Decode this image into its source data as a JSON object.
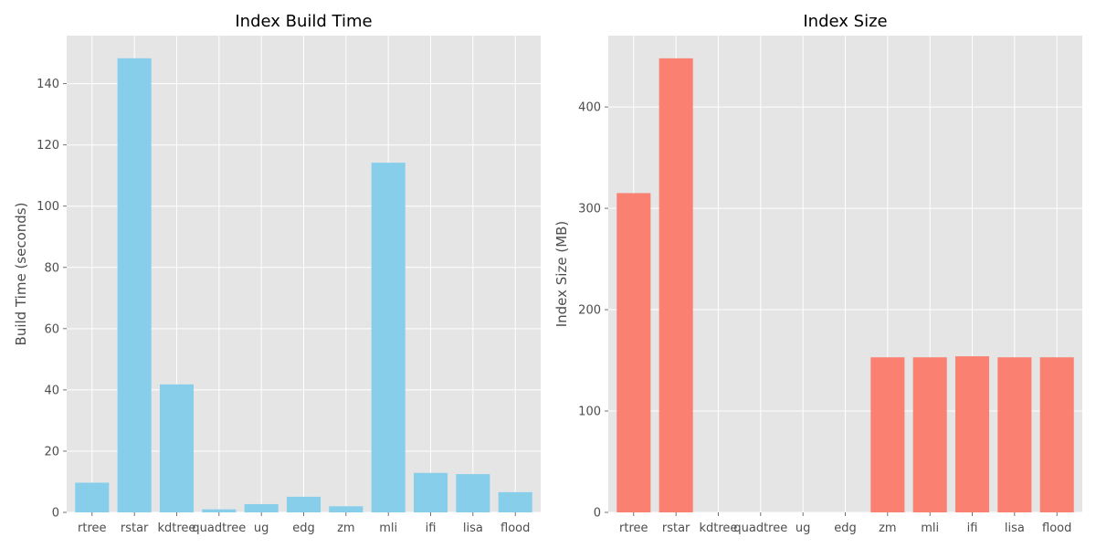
{
  "chart_data": [
    {
      "type": "bar",
      "title": "Index Build Time",
      "xlabel": "",
      "ylabel": "Build Time (seconds)",
      "categories": [
        "rtree",
        "rstar",
        "kdtree",
        "quadtree",
        "ug",
        "edg",
        "zm",
        "mli",
        "ifi",
        "lisa",
        "flood"
      ],
      "values": [
        9.7,
        148.3,
        41.8,
        1.0,
        2.7,
        5.1,
        2.0,
        114.2,
        12.9,
        12.5,
        6.6
      ],
      "ylim": [
        0,
        155.7
      ],
      "yticks": [
        0,
        20,
        40,
        60,
        80,
        100,
        120,
        140
      ],
      "color": "#87ceeb",
      "grid": true,
      "legend": "none"
    },
    {
      "type": "bar",
      "title": "Index Size",
      "xlabel": "",
      "ylabel": "Index Size (MB)",
      "categories": [
        "rtree",
        "rstar",
        "kdtree",
        "quadtree",
        "ug",
        "edg",
        "zm",
        "mli",
        "ifi",
        "lisa",
        "flood"
      ],
      "values": [
        315,
        448,
        0,
        0,
        0,
        0,
        153,
        153,
        154,
        153,
        153
      ],
      "ylim": [
        0,
        470.4
      ],
      "yticks": [
        0,
        100,
        200,
        300,
        400
      ],
      "color": "#fa8072",
      "grid": true,
      "legend": "none"
    }
  ]
}
